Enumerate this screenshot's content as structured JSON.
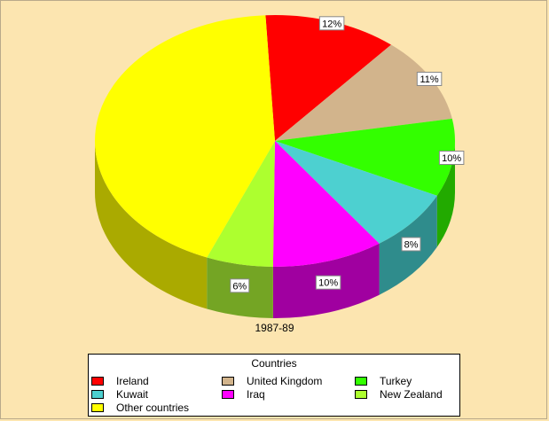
{
  "chart_data": {
    "type": "pie",
    "title": "1987-89",
    "legend_title": "Countries",
    "legend_position": "bottom",
    "slices": [
      {
        "label": "Ireland",
        "value": 12,
        "display": "12%",
        "color": "#ff0000",
        "side_color": "#a80000"
      },
      {
        "label": "United Kingdom",
        "value": 11,
        "display": "11%",
        "color": "#d2b48c",
        "side_color": "#8c7757"
      },
      {
        "label": "Turkey",
        "value": 10,
        "display": "10%",
        "color": "#33ff00",
        "side_color": "#22aa00"
      },
      {
        "label": "Kuwait",
        "value": 8,
        "display": "8%",
        "color": "#4dd0d0",
        "side_color": "#2f8c8c"
      },
      {
        "label": "Iraq",
        "value": 10,
        "display": "10%",
        "color": "#ff00ff",
        "side_color": "#a000a0"
      },
      {
        "label": "New Zealand",
        "value": 6,
        "display": "6%",
        "color": "#adff2f",
        "side_color": "#74a524"
      },
      {
        "label": "Other countries",
        "value": 43,
        "display": "",
        "color": "#ffff00",
        "side_color": "#aaaa00"
      }
    ]
  }
}
